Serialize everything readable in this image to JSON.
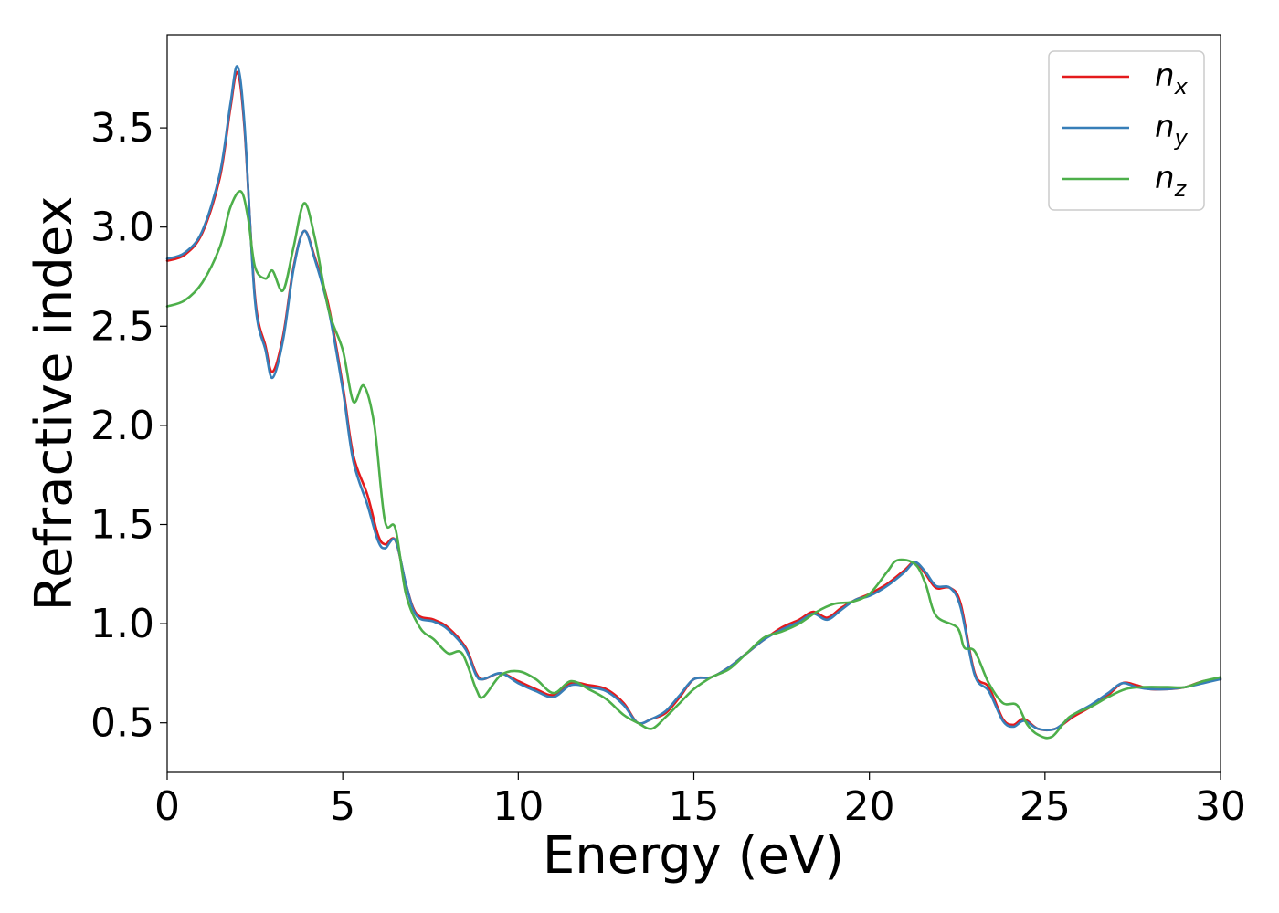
{
  "chart_data": {
    "type": "line",
    "title": "",
    "xlabel": "Energy (eV)",
    "ylabel": "Refractive index",
    "xlim": [
      0,
      30
    ],
    "ylim": [
      0.25,
      3.97
    ],
    "x_ticks": [
      "0",
      "5",
      "10",
      "15",
      "20",
      "25",
      "30"
    ],
    "y_ticks": [
      "0.5",
      "1.0",
      "1.5",
      "2.0",
      "2.5",
      "3.0",
      "3.5"
    ],
    "grid": false,
    "legend_position": "top-right",
    "series": [
      {
        "name": "n_x",
        "legend_base": "n",
        "legend_sub": "x",
        "color": "#e41a1c",
        "points": [
          [
            0,
            2.83
          ],
          [
            0.5,
            2.86
          ],
          [
            1.0,
            2.97
          ],
          [
            1.5,
            3.25
          ],
          [
            1.8,
            3.6
          ],
          [
            2.0,
            3.78
          ],
          [
            2.2,
            3.5
          ],
          [
            2.5,
            2.65
          ],
          [
            2.8,
            2.4
          ],
          [
            3.0,
            2.27
          ],
          [
            3.3,
            2.45
          ],
          [
            3.6,
            2.8
          ],
          [
            3.9,
            2.98
          ],
          [
            4.2,
            2.85
          ],
          [
            4.6,
            2.6
          ],
          [
            5.0,
            2.2
          ],
          [
            5.3,
            1.85
          ],
          [
            5.7,
            1.65
          ],
          [
            6.0,
            1.45
          ],
          [
            6.2,
            1.4
          ],
          [
            6.5,
            1.42
          ],
          [
            6.8,
            1.2
          ],
          [
            7.1,
            1.05
          ],
          [
            7.6,
            1.02
          ],
          [
            8.0,
            0.98
          ],
          [
            8.5,
            0.88
          ],
          [
            8.8,
            0.75
          ],
          [
            9.0,
            0.72
          ],
          [
            9.5,
            0.75
          ],
          [
            10.0,
            0.71
          ],
          [
            10.5,
            0.67
          ],
          [
            11.0,
            0.64
          ],
          [
            11.5,
            0.7
          ],
          [
            12.0,
            0.69
          ],
          [
            12.5,
            0.67
          ],
          [
            13.0,
            0.6
          ],
          [
            13.4,
            0.5
          ],
          [
            13.8,
            0.52
          ],
          [
            14.2,
            0.55
          ],
          [
            14.6,
            0.63
          ],
          [
            15.0,
            0.72
          ],
          [
            15.5,
            0.73
          ],
          [
            16.0,
            0.78
          ],
          [
            16.5,
            0.85
          ],
          [
            17.0,
            0.92
          ],
          [
            17.5,
            0.98
          ],
          [
            18.0,
            1.02
          ],
          [
            18.4,
            1.06
          ],
          [
            18.8,
            1.03
          ],
          [
            19.2,
            1.08
          ],
          [
            19.6,
            1.12
          ],
          [
            20.0,
            1.15
          ],
          [
            20.5,
            1.2
          ],
          [
            21.0,
            1.27
          ],
          [
            21.3,
            1.31
          ],
          [
            21.6,
            1.25
          ],
          [
            21.9,
            1.18
          ],
          [
            22.3,
            1.18
          ],
          [
            22.6,
            1.1
          ],
          [
            23.0,
            0.75
          ],
          [
            23.4,
            0.68
          ],
          [
            23.8,
            0.52
          ],
          [
            24.1,
            0.49
          ],
          [
            24.4,
            0.52
          ],
          [
            24.8,
            0.47
          ],
          [
            25.3,
            0.47
          ],
          [
            25.8,
            0.53
          ],
          [
            26.3,
            0.58
          ],
          [
            26.8,
            0.64
          ],
          [
            27.2,
            0.7
          ],
          [
            27.6,
            0.69
          ],
          [
            28.0,
            0.67
          ],
          [
            28.5,
            0.67
          ],
          [
            29.0,
            0.68
          ],
          [
            29.5,
            0.71
          ],
          [
            30.0,
            0.72
          ]
        ]
      },
      {
        "name": "n_y",
        "legend_base": "n",
        "legend_sub": "y",
        "color": "#377eb8",
        "points": [
          [
            0,
            2.84
          ],
          [
            0.5,
            2.87
          ],
          [
            1.0,
            2.98
          ],
          [
            1.5,
            3.27
          ],
          [
            1.8,
            3.62
          ],
          [
            2.0,
            3.81
          ],
          [
            2.2,
            3.52
          ],
          [
            2.5,
            2.63
          ],
          [
            2.8,
            2.38
          ],
          [
            3.0,
            2.24
          ],
          [
            3.3,
            2.43
          ],
          [
            3.6,
            2.79
          ],
          [
            3.9,
            2.98
          ],
          [
            4.2,
            2.84
          ],
          [
            4.6,
            2.58
          ],
          [
            5.0,
            2.18
          ],
          [
            5.3,
            1.82
          ],
          [
            5.7,
            1.6
          ],
          [
            6.0,
            1.42
          ],
          [
            6.2,
            1.38
          ],
          [
            6.5,
            1.42
          ],
          [
            6.8,
            1.2
          ],
          [
            7.1,
            1.04
          ],
          [
            7.6,
            1.01
          ],
          [
            8.0,
            0.97
          ],
          [
            8.5,
            0.87
          ],
          [
            8.8,
            0.74
          ],
          [
            9.0,
            0.72
          ],
          [
            9.5,
            0.75
          ],
          [
            10.0,
            0.7
          ],
          [
            10.5,
            0.66
          ],
          [
            11.0,
            0.63
          ],
          [
            11.5,
            0.69
          ],
          [
            12.0,
            0.68
          ],
          [
            12.5,
            0.66
          ],
          [
            13.0,
            0.59
          ],
          [
            13.4,
            0.5
          ],
          [
            13.8,
            0.52
          ],
          [
            14.2,
            0.56
          ],
          [
            14.6,
            0.64
          ],
          [
            15.0,
            0.72
          ],
          [
            15.5,
            0.73
          ],
          [
            16.0,
            0.78
          ],
          [
            16.5,
            0.85
          ],
          [
            17.0,
            0.92
          ],
          [
            17.5,
            0.97
          ],
          [
            18.0,
            1.01
          ],
          [
            18.4,
            1.05
          ],
          [
            18.8,
            1.02
          ],
          [
            19.2,
            1.07
          ],
          [
            19.6,
            1.12
          ],
          [
            20.0,
            1.14
          ],
          [
            20.5,
            1.19
          ],
          [
            21.0,
            1.26
          ],
          [
            21.3,
            1.31
          ],
          [
            21.6,
            1.26
          ],
          [
            21.9,
            1.19
          ],
          [
            22.3,
            1.18
          ],
          [
            22.6,
            1.08
          ],
          [
            23.0,
            0.74
          ],
          [
            23.4,
            0.66
          ],
          [
            23.8,
            0.51
          ],
          [
            24.1,
            0.48
          ],
          [
            24.4,
            0.51
          ],
          [
            24.8,
            0.47
          ],
          [
            25.3,
            0.47
          ],
          [
            25.8,
            0.54
          ],
          [
            26.3,
            0.59
          ],
          [
            26.8,
            0.65
          ],
          [
            27.2,
            0.7
          ],
          [
            27.6,
            0.68
          ],
          [
            28.0,
            0.67
          ],
          [
            28.5,
            0.67
          ],
          [
            29.0,
            0.68
          ],
          [
            29.5,
            0.7
          ],
          [
            30.0,
            0.72
          ]
        ]
      },
      {
        "name": "n_z",
        "legend_base": "n",
        "legend_sub": "z",
        "color": "#4daf4a",
        "points": [
          [
            0,
            2.6
          ],
          [
            0.5,
            2.63
          ],
          [
            1.0,
            2.72
          ],
          [
            1.5,
            2.9
          ],
          [
            1.8,
            3.1
          ],
          [
            2.1,
            3.18
          ],
          [
            2.3,
            3.05
          ],
          [
            2.5,
            2.8
          ],
          [
            2.8,
            2.74
          ],
          [
            3.0,
            2.78
          ],
          [
            3.3,
            2.68
          ],
          [
            3.6,
            2.9
          ],
          [
            3.9,
            3.12
          ],
          [
            4.2,
            2.95
          ],
          [
            4.6,
            2.58
          ],
          [
            5.0,
            2.38
          ],
          [
            5.3,
            2.12
          ],
          [
            5.6,
            2.2
          ],
          [
            5.9,
            2.0
          ],
          [
            6.2,
            1.52
          ],
          [
            6.5,
            1.48
          ],
          [
            6.8,
            1.15
          ],
          [
            7.2,
            0.98
          ],
          [
            7.6,
            0.92
          ],
          [
            8.0,
            0.85
          ],
          [
            8.4,
            0.85
          ],
          [
            8.8,
            0.67
          ],
          [
            9.0,
            0.63
          ],
          [
            9.5,
            0.74
          ],
          [
            10.0,
            0.76
          ],
          [
            10.5,
            0.72
          ],
          [
            11.0,
            0.65
          ],
          [
            11.5,
            0.71
          ],
          [
            12.0,
            0.67
          ],
          [
            12.5,
            0.62
          ],
          [
            13.0,
            0.54
          ],
          [
            13.4,
            0.5
          ],
          [
            13.8,
            0.47
          ],
          [
            14.2,
            0.53
          ],
          [
            14.6,
            0.6
          ],
          [
            15.0,
            0.67
          ],
          [
            15.5,
            0.73
          ],
          [
            16.0,
            0.77
          ],
          [
            16.5,
            0.85
          ],
          [
            17.0,
            0.93
          ],
          [
            17.5,
            0.96
          ],
          [
            18.0,
            1.0
          ],
          [
            18.5,
            1.06
          ],
          [
            19.0,
            1.1
          ],
          [
            19.5,
            1.11
          ],
          [
            20.0,
            1.15
          ],
          [
            20.5,
            1.26
          ],
          [
            20.8,
            1.32
          ],
          [
            21.3,
            1.3
          ],
          [
            21.6,
            1.2
          ],
          [
            21.9,
            1.04
          ],
          [
            22.5,
            0.98
          ],
          [
            22.7,
            0.88
          ],
          [
            23.0,
            0.86
          ],
          [
            23.4,
            0.7
          ],
          [
            23.8,
            0.6
          ],
          [
            24.2,
            0.59
          ],
          [
            24.5,
            0.49
          ],
          [
            24.8,
            0.44
          ],
          [
            25.2,
            0.43
          ],
          [
            25.7,
            0.53
          ],
          [
            26.3,
            0.58
          ],
          [
            26.8,
            0.63
          ],
          [
            27.3,
            0.67
          ],
          [
            27.8,
            0.68
          ],
          [
            28.5,
            0.68
          ],
          [
            29.0,
            0.68
          ],
          [
            29.5,
            0.71
          ],
          [
            30.0,
            0.73
          ]
        ]
      }
    ]
  }
}
